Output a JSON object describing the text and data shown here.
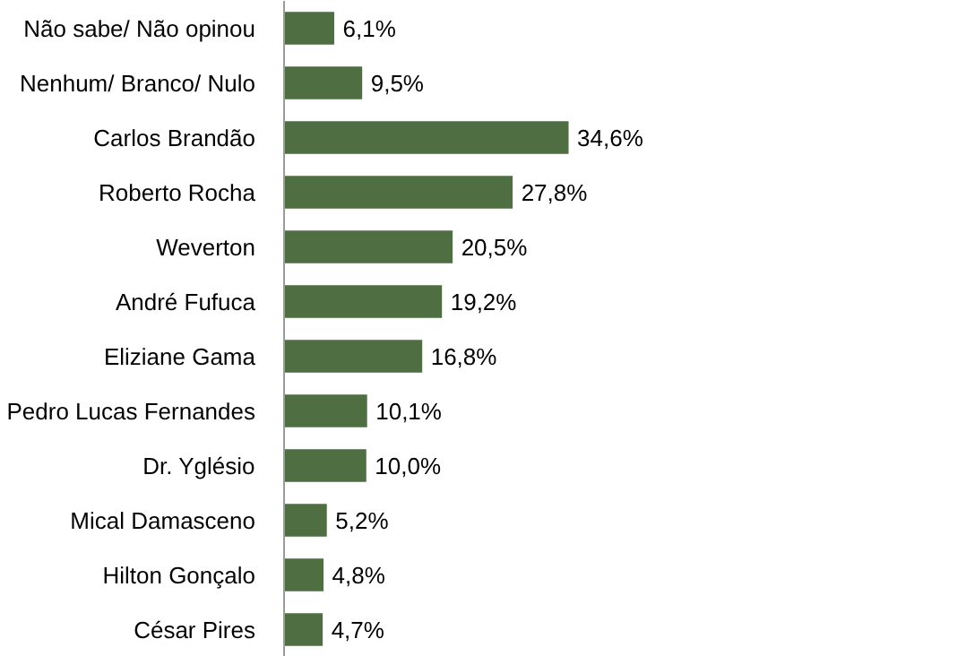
{
  "chart_data": {
    "type": "bar",
    "orientation": "horizontal",
    "categories": [
      "Não sabe/ Não opinou",
      "Nenhum/ Branco/ Nulo",
      "Carlos Brandão",
      "Roberto Rocha",
      "Weverton",
      "André Fufuca",
      "Eliziane Gama",
      "Pedro Lucas Fernandes",
      "Dr. Yglésio",
      "Mical Damasceno",
      "Hilton Gonçalo",
      "César Pires"
    ],
    "values": [
      6.1,
      9.5,
      34.6,
      27.8,
      20.5,
      19.2,
      16.8,
      10.1,
      10.0,
      5.2,
      4.8,
      4.7
    ],
    "value_labels": [
      "6,1%",
      "9,5%",
      "34,6%",
      "27,8%",
      "20,5%",
      "19,2%",
      "16,8%",
      "10,1%",
      "10,0%",
      "5,2%",
      "4,8%",
      "4,7%"
    ],
    "color": "#4f6e42"
  }
}
